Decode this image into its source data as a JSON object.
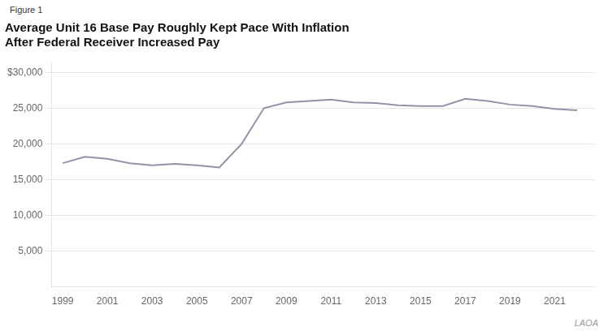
{
  "chart_data": {
    "type": "line",
    "title": [
      "Average Unit 16 Base Pay Roughly Kept Pace With Inflation",
      "After Federal Receiver Increased Pay"
    ],
    "annotations": [
      "Figure 1",
      "LAOA"
    ],
    "x": [
      1999,
      2000,
      2001,
      2002,
      2003,
      2004,
      2005,
      2006,
      2007,
      2008,
      2009,
      2010,
      2011,
      2012,
      2013,
      2014,
      2015,
      2016,
      2017,
      2018,
      2019,
      2020,
      2021,
      2022
    ],
    "values": [
      17300,
      18200,
      17900,
      17300,
      17000,
      17200,
      17000,
      16700,
      20000,
      25000,
      25800,
      26000,
      26200,
      25800,
      25700,
      25400,
      25300,
      25300,
      26300,
      26000,
      25500,
      25300,
      24900,
      24700
    ],
    "color": "#9b8fa8",
    "xlim": [
      1998.5,
      2022.8
    ],
    "xticks": [
      1999,
      2001,
      2003,
      2005,
      2007,
      2009,
      2011,
      2013,
      2015,
      2017,
      2019,
      2021
    ],
    "ylim": [
      0,
      31500
    ],
    "yticks": [
      {
        "value": 5000,
        "label": "5,000"
      },
      {
        "value": 10000,
        "label": "10,000"
      },
      {
        "value": 15000,
        "label": "15,000"
      },
      {
        "value": 20000,
        "label": "20,000"
      },
      {
        "value": 25000,
        "label": "25,000"
      },
      {
        "value": 30000,
        "label": "$30,000"
      }
    ],
    "grid": true
  }
}
